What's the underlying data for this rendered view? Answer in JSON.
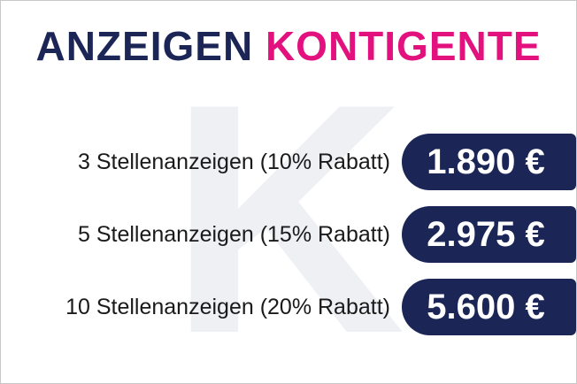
{
  "watermark": "K",
  "header": {
    "title_part1": "ANZEIGEN",
    "title_part2": "KONTIGENTE"
  },
  "rows": [
    {
      "label": "3 Stellenanzeigen (10% Rabatt)",
      "price": "1.890 €"
    },
    {
      "label": "5 Stellenanzeigen (15% Rabatt)",
      "price": "2.975 €"
    },
    {
      "label": "10 Stellenanzeigen (20% Rabatt)",
      "price": "5.600 €"
    }
  ]
}
